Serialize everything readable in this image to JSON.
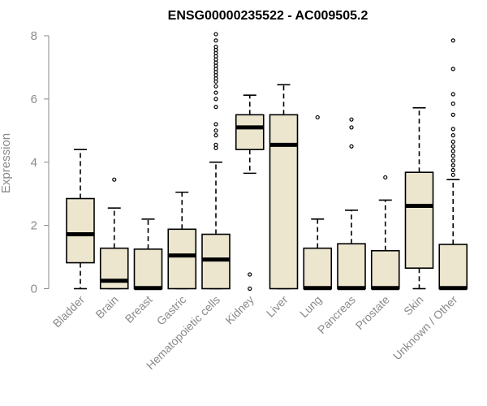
{
  "chart_data": {
    "type": "boxplot",
    "title": "ENSG00000235522 - AC009505.2",
    "xlabel": "",
    "ylabel": "Expression",
    "ylim": [
      0,
      8
    ],
    "yticks": [
      0,
      2,
      4,
      6,
      8
    ],
    "box_fill": "#ede6cf",
    "categories": [
      "Bladder",
      "Brain",
      "Breast",
      "Gastric",
      "Hematopoietic cells",
      "Kidney",
      "Liver",
      "Lung",
      "Pancreas",
      "Prostate",
      "Skin",
      "Unknown / Other"
    ],
    "boxes": [
      {
        "category": "Bladder",
        "min": 0,
        "q1": 0.82,
        "median": 1.72,
        "q3": 2.85,
        "max": 4.4,
        "outliers": []
      },
      {
        "category": "Brain",
        "min": 0,
        "q1": 0,
        "median": 0.25,
        "q3": 1.28,
        "max": 2.55,
        "outliers": [
          3.45
        ]
      },
      {
        "category": "Breast",
        "min": 0,
        "q1": 0,
        "median": 0.02,
        "q3": 1.25,
        "max": 2.2,
        "outliers": []
      },
      {
        "category": "Gastric",
        "min": 0,
        "q1": 0,
        "median": 1.05,
        "q3": 1.88,
        "max": 3.05,
        "outliers": []
      },
      {
        "category": "Hematopoietic cells",
        "min": 0,
        "q1": 0,
        "median": 0.92,
        "q3": 1.72,
        "max": 4.0,
        "outliers": [
          4.45,
          4.55,
          4.85,
          5.0,
          5.2,
          5.75,
          6.0,
          6.2,
          6.4,
          6.55,
          6.65,
          6.75,
          6.85,
          6.95,
          7.05,
          7.15,
          7.25,
          7.35,
          7.45,
          7.55,
          7.65,
          7.85,
          8.05
        ]
      },
      {
        "category": "Kidney",
        "min": 3.65,
        "q1": 4.4,
        "median": 5.1,
        "q3": 5.5,
        "max": 6.12,
        "outliers": [
          0.45,
          0
        ]
      },
      {
        "category": "Liver",
        "min": 0,
        "q1": 0,
        "median": 4.55,
        "q3": 5.5,
        "max": 6.45,
        "outliers": []
      },
      {
        "category": "Lung",
        "min": 0,
        "q1": 0,
        "median": 0.02,
        "q3": 1.28,
        "max": 2.2,
        "outliers": [
          5.42
        ]
      },
      {
        "category": "Pancreas",
        "min": 0,
        "q1": 0,
        "median": 0.02,
        "q3": 1.42,
        "max": 2.48,
        "outliers": [
          5.35,
          5.1,
          4.5
        ]
      },
      {
        "category": "Prostate",
        "min": 0,
        "q1": 0,
        "median": 0.02,
        "q3": 1.2,
        "max": 2.8,
        "outliers": [
          3.52
        ]
      },
      {
        "category": "Skin",
        "min": 0,
        "q1": 0.65,
        "median": 2.62,
        "q3": 3.68,
        "max": 5.72,
        "outliers": []
      },
      {
        "category": "Unknown / Other",
        "min": 0,
        "q1": 0,
        "median": 0.02,
        "q3": 1.4,
        "max": 3.45,
        "outliers": [
          3.6,
          3.75,
          3.9,
          4.05,
          4.2,
          4.35,
          4.5,
          4.65,
          4.85,
          5.05,
          5.5,
          5.85,
          6.15,
          6.95,
          7.85
        ]
      }
    ]
  }
}
